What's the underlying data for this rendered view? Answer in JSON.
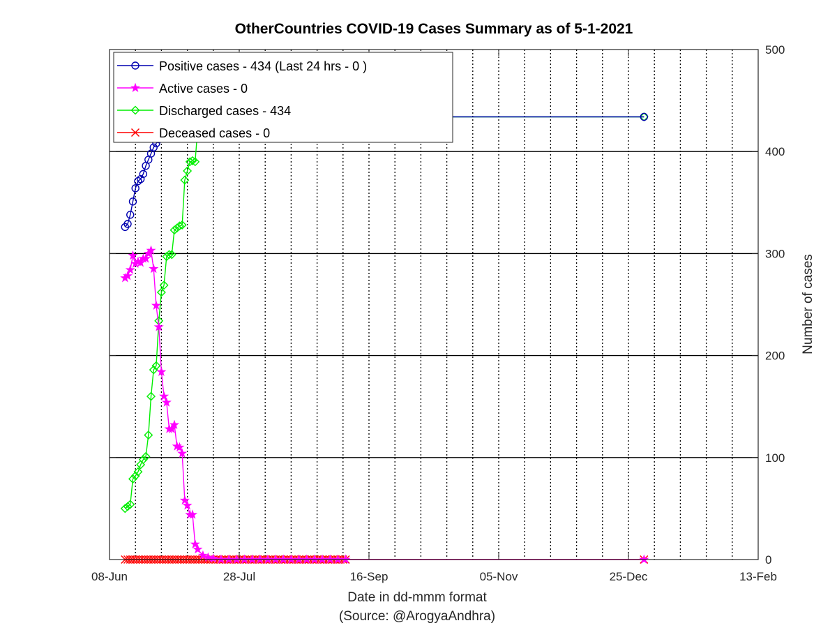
{
  "chart_data": {
    "type": "line",
    "title": "OtherCountries COVID-19 Cases Summary as of 5-1-2021",
    "xlabel": "Date in dd-mmm format",
    "xlabel_source": "(Source: @ArogyaAndhra)",
    "ylabel": "Number of cases",
    "x_tick_labels": [
      "08-Jun",
      "28-Jul",
      "16-Sep",
      "05-Nov",
      "25-Dec",
      "13-Feb"
    ],
    "x_range_days": [
      0,
      250
    ],
    "ylim": [
      0,
      500
    ],
    "y_ticks": [
      0,
      100,
      200,
      300,
      400,
      500
    ],
    "y_axis_side": "right",
    "grid": "major horizontal solid, minor vertical dotted every 10 days",
    "legend_position": "top-left",
    "series": [
      {
        "name": "Positive cases - 434 (Last 24 hrs - 0 )",
        "color": "#0000b0",
        "marker": "circle",
        "x": [
          6,
          7,
          8,
          9,
          10,
          11,
          12,
          13,
          14,
          15,
          16,
          17,
          18,
          19,
          20,
          21,
          22,
          23,
          24,
          25,
          26,
          27,
          28,
          29,
          30,
          31,
          32,
          33,
          34,
          35,
          37,
          40,
          43,
          46,
          49,
          52,
          55,
          58,
          61,
          64,
          67,
          70,
          73,
          76,
          79,
          82,
          85,
          88,
          91,
          206
        ],
        "y": [
          326,
          329,
          338,
          351,
          364,
          371,
          373,
          378,
          386,
          392,
          398,
          404,
          408,
          412,
          416,
          420,
          423,
          425,
          427,
          429,
          430,
          431,
          431,
          432,
          432,
          432,
          433,
          433,
          433,
          433,
          433,
          434,
          434,
          434,
          434,
          434,
          434,
          434,
          434,
          434,
          434,
          434,
          434,
          434,
          434,
          434,
          434,
          434,
          434,
          434
        ]
      },
      {
        "name": "Active cases - 0",
        "color": "#ff00ff",
        "marker": "star",
        "x": [
          6,
          7,
          8,
          9,
          10,
          11,
          12,
          13,
          14,
          15,
          16,
          17,
          18,
          19,
          20,
          21,
          22,
          23,
          24,
          25,
          26,
          27,
          28,
          29,
          30,
          31,
          32,
          33,
          34,
          36,
          38,
          40,
          43,
          46,
          49,
          52,
          55,
          58,
          61,
          64,
          67,
          70,
          73,
          76,
          79,
          82,
          85,
          88,
          91,
          206
        ],
        "y": [
          276,
          278,
          284,
          298,
          290,
          292,
          291,
          295,
          295,
          300,
          303,
          285,
          249,
          228,
          184,
          160,
          154,
          128,
          128,
          132,
          111,
          110,
          104,
          58,
          53,
          44,
          44,
          15,
          10,
          4,
          2,
          1,
          0,
          0,
          0,
          0,
          0,
          0,
          0,
          0,
          0,
          0,
          0,
          0,
          0,
          0,
          0,
          0,
          0,
          0
        ]
      },
      {
        "name": "Discharged cases - 434",
        "color": "#00ee00",
        "marker": "diamond",
        "x": [
          6,
          7,
          8,
          9,
          10,
          11,
          12,
          13,
          14,
          15,
          16,
          17,
          18,
          19,
          20,
          21,
          22,
          23,
          24,
          25,
          26,
          27,
          28,
          29,
          30,
          31,
          32,
          33,
          34,
          35,
          37,
          40,
          43,
          46,
          49,
          52,
          55,
          58,
          61,
          64,
          67,
          70,
          73,
          76,
          79,
          82,
          85,
          88,
          91,
          206
        ],
        "y": [
          50,
          52,
          54,
          79,
          82,
          86,
          93,
          98,
          101,
          122,
          160,
          186,
          190,
          234,
          262,
          269,
          297,
          299,
          299,
          323,
          325,
          327,
          328,
          372,
          381,
          390,
          391,
          390,
          423,
          427,
          432,
          434,
          434,
          434,
          434,
          434,
          434,
          434,
          434,
          434,
          434,
          434,
          434,
          434,
          434,
          434,
          434,
          434,
          434,
          434
        ]
      },
      {
        "name": "Deceased cases - 0",
        "color": "#ff0000",
        "marker": "x",
        "x_start": 6,
        "x_end": 91,
        "x_extra": [
          206
        ],
        "value": 0
      }
    ]
  }
}
